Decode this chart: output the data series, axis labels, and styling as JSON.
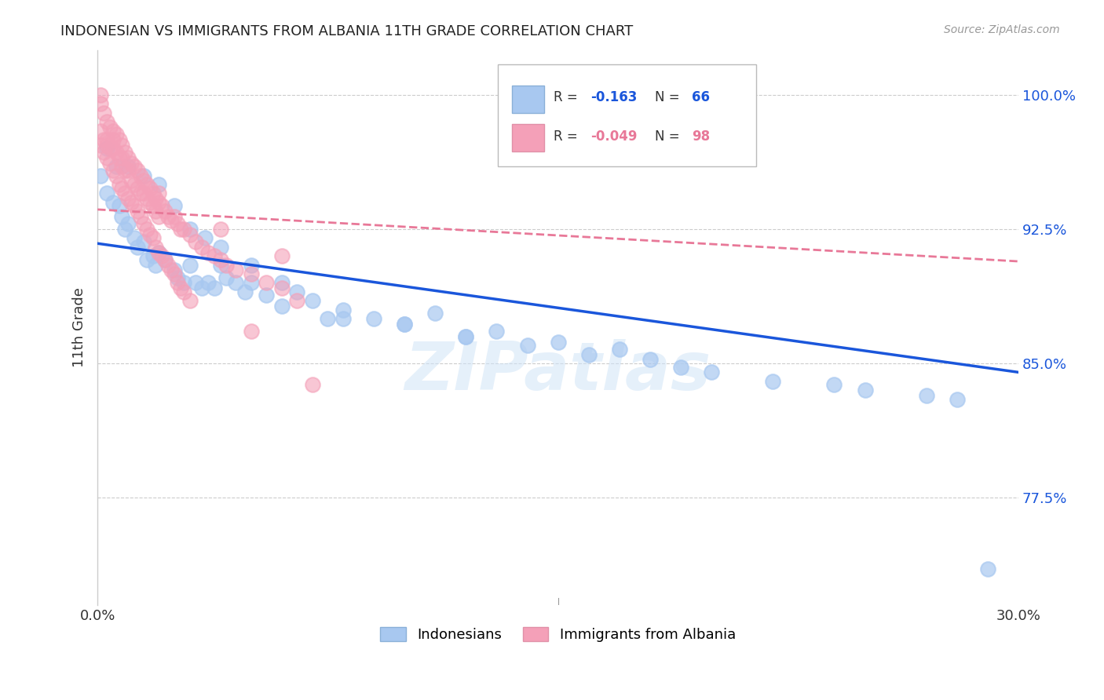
{
  "title": "INDONESIAN VS IMMIGRANTS FROM ALBANIA 11TH GRADE CORRELATION CHART",
  "source": "Source: ZipAtlas.com",
  "ylabel": "11th Grade",
  "ytick_labels": [
    "77.5%",
    "85.0%",
    "92.5%",
    "100.0%"
  ],
  "ytick_values": [
    0.775,
    0.85,
    0.925,
    1.0
  ],
  "xlim": [
    0.0,
    0.3
  ],
  "ylim": [
    0.715,
    1.025
  ],
  "watermark": "ZIPatlas",
  "indonesian_color": "#a8c8f0",
  "albanian_color": "#f4a0b8",
  "indonesian_line_color": "#1a56db",
  "albanian_line_color": "#e87898",
  "indonesian_scatter_x": [
    0.001,
    0.003,
    0.005,
    0.007,
    0.008,
    0.009,
    0.01,
    0.012,
    0.013,
    0.015,
    0.016,
    0.018,
    0.019,
    0.02,
    0.022,
    0.025,
    0.026,
    0.028,
    0.03,
    0.032,
    0.034,
    0.036,
    0.038,
    0.04,
    0.042,
    0.045,
    0.048,
    0.05,
    0.055,
    0.06,
    0.065,
    0.07,
    0.075,
    0.08,
    0.09,
    0.1,
    0.11,
    0.12,
    0.13,
    0.14,
    0.15,
    0.16,
    0.17,
    0.18,
    0.19,
    0.2,
    0.22,
    0.24,
    0.25,
    0.27,
    0.28,
    0.29,
    0.003,
    0.006,
    0.01,
    0.015,
    0.02,
    0.025,
    0.03,
    0.035,
    0.04,
    0.05,
    0.06,
    0.08,
    0.1,
    0.12
  ],
  "indonesian_scatter_y": [
    0.955,
    0.945,
    0.94,
    0.938,
    0.932,
    0.925,
    0.928,
    0.92,
    0.915,
    0.918,
    0.908,
    0.91,
    0.905,
    0.912,
    0.908,
    0.902,
    0.898,
    0.895,
    0.905,
    0.895,
    0.892,
    0.895,
    0.892,
    0.905,
    0.898,
    0.895,
    0.89,
    0.895,
    0.888,
    0.882,
    0.89,
    0.885,
    0.875,
    0.88,
    0.875,
    0.872,
    0.878,
    0.865,
    0.868,
    0.86,
    0.862,
    0.855,
    0.858,
    0.852,
    0.848,
    0.845,
    0.84,
    0.838,
    0.835,
    0.832,
    0.83,
    0.735,
    0.97,
    0.96,
    0.96,
    0.955,
    0.95,
    0.938,
    0.925,
    0.92,
    0.915,
    0.905,
    0.895,
    0.875,
    0.872,
    0.865
  ],
  "albanian_scatter_x": [
    0.001,
    0.001,
    0.002,
    0.002,
    0.003,
    0.003,
    0.004,
    0.004,
    0.005,
    0.005,
    0.006,
    0.006,
    0.007,
    0.007,
    0.008,
    0.008,
    0.009,
    0.009,
    0.01,
    0.01,
    0.011,
    0.011,
    0.012,
    0.012,
    0.013,
    0.013,
    0.014,
    0.014,
    0.015,
    0.015,
    0.016,
    0.016,
    0.017,
    0.017,
    0.018,
    0.018,
    0.019,
    0.019,
    0.02,
    0.02,
    0.021,
    0.022,
    0.023,
    0.024,
    0.025,
    0.026,
    0.027,
    0.028,
    0.03,
    0.032,
    0.034,
    0.036,
    0.038,
    0.04,
    0.042,
    0.045,
    0.05,
    0.055,
    0.06,
    0.065,
    0.001,
    0.002,
    0.003,
    0.004,
    0.005,
    0.006,
    0.007,
    0.008,
    0.009,
    0.01,
    0.011,
    0.012,
    0.013,
    0.014,
    0.015,
    0.016,
    0.017,
    0.018,
    0.019,
    0.02,
    0.021,
    0.022,
    0.023,
    0.024,
    0.025,
    0.026,
    0.027,
    0.028,
    0.03,
    0.05,
    0.001,
    0.003,
    0.005,
    0.008,
    0.02,
    0.04,
    0.06,
    0.07
  ],
  "albanian_scatter_y": [
    0.995,
    0.98,
    0.99,
    0.975,
    0.985,
    0.972,
    0.982,
    0.97,
    0.98,
    0.975,
    0.978,
    0.968,
    0.975,
    0.965,
    0.972,
    0.96,
    0.968,
    0.958,
    0.965,
    0.958,
    0.962,
    0.952,
    0.96,
    0.95,
    0.958,
    0.948,
    0.955,
    0.945,
    0.952,
    0.945,
    0.95,
    0.942,
    0.948,
    0.94,
    0.945,
    0.938,
    0.942,
    0.935,
    0.94,
    0.932,
    0.938,
    0.935,
    0.932,
    0.93,
    0.932,
    0.928,
    0.925,
    0.925,
    0.922,
    0.918,
    0.915,
    0.912,
    0.91,
    0.908,
    0.905,
    0.902,
    0.9,
    0.895,
    0.892,
    0.885,
    0.972,
    0.968,
    0.965,
    0.962,
    0.958,
    0.955,
    0.95,
    0.948,
    0.945,
    0.942,
    0.94,
    0.938,
    0.935,
    0.932,
    0.928,
    0.925,
    0.922,
    0.92,
    0.915,
    0.912,
    0.91,
    0.908,
    0.905,
    0.902,
    0.9,
    0.895,
    0.892,
    0.89,
    0.885,
    0.868,
    1.0,
    0.975,
    0.97,
    0.965,
    0.945,
    0.925,
    0.91,
    0.838
  ],
  "trend_indonesian_x0": 0.0,
  "trend_indonesian_y0": 0.917,
  "trend_indonesian_x1": 0.3,
  "trend_indonesian_y1": 0.845,
  "trend_albanian_x0": 0.0,
  "trend_albanian_y0": 0.936,
  "trend_albanian_x1": 0.3,
  "trend_albanian_y1": 0.907,
  "legend_r1": "R = ",
  "legend_v1": "-0.163",
  "legend_n1": "N = ",
  "legend_nv1": "66",
  "legend_r2": "R = ",
  "legend_v2": "-0.049",
  "legend_n2": "N = ",
  "legend_nv2": "98",
  "legend_labels": [
    "Indonesians",
    "Immigrants from Albania"
  ],
  "background_color": "#ffffff",
  "grid_color": "#cccccc"
}
